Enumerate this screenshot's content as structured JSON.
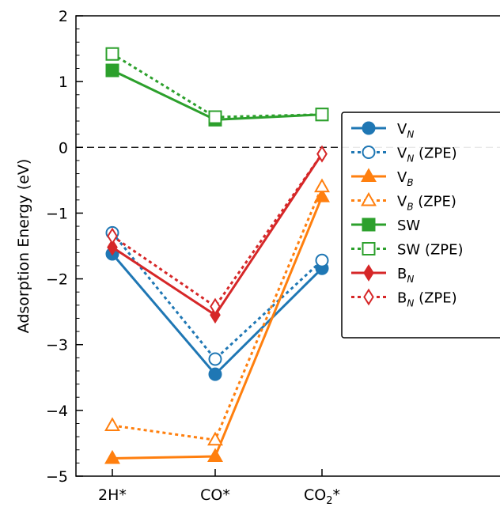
{
  "chart_data": {
    "type": "line",
    "categories": [
      "2H*",
      "CO*",
      "CO2*"
    ],
    "category_labels": [
      {
        "main": "2H*",
        "sub": ""
      },
      {
        "main": "CO*",
        "sub": ""
      },
      {
        "main": "CO",
        "sub": "2",
        "suffix": "*"
      }
    ],
    "ylabel": "Adsorption Energy (eV)",
    "xlabel": "",
    "title": "",
    "ylim": [
      -5,
      2
    ],
    "yticks": [
      2,
      1,
      0,
      -1,
      -2,
      -3,
      -4,
      -5
    ],
    "ytick_labels": [
      "2",
      "1",
      "0",
      "−1",
      "−2",
      "−3",
      "−4",
      "−5"
    ],
    "reference_line": {
      "y": 0,
      "style": "dashed",
      "color": "#000000"
    },
    "legend_position": "right",
    "series": [
      {
        "name": "V",
        "sub": "N",
        "suffix": "",
        "values": [
          -1.62,
          -3.45,
          -1.84
        ],
        "color": "#1f77b4",
        "marker": "circle",
        "filled": true,
        "dashed": false
      },
      {
        "name": "V",
        "sub": "N",
        "suffix": " (ZPE)",
        "values": [
          -1.3,
          -3.22,
          -1.72
        ],
        "color": "#1f77b4",
        "marker": "circle",
        "filled": false,
        "dashed": true
      },
      {
        "name": "V",
        "sub": "B",
        "suffix": "",
        "values": [
          -4.73,
          -4.7,
          -0.75
        ],
        "color": "#ff7f0e",
        "marker": "triangle",
        "filled": true,
        "dashed": false
      },
      {
        "name": "V",
        "sub": "B",
        "suffix": " (ZPE)",
        "values": [
          -4.23,
          -4.45,
          -0.6
        ],
        "color": "#ff7f0e",
        "marker": "triangle",
        "filled": false,
        "dashed": true
      },
      {
        "name": "SW",
        "sub": "",
        "suffix": "",
        "values": [
          1.17,
          0.42,
          0.5
        ],
        "color": "#2ca02c",
        "marker": "square",
        "filled": true,
        "dashed": false
      },
      {
        "name": "SW",
        "sub": "",
        "suffix": " (ZPE)",
        "values": [
          1.42,
          0.46,
          0.5
        ],
        "color": "#2ca02c",
        "marker": "square",
        "filled": false,
        "dashed": true
      },
      {
        "name": "B",
        "sub": "N",
        "suffix": "",
        "values": [
          -1.52,
          -2.55,
          -0.1
        ],
        "color": "#d62728",
        "marker": "diamond",
        "filled": true,
        "dashed": false
      },
      {
        "name": "B",
        "sub": "N",
        "suffix": " (ZPE)",
        "values": [
          -1.35,
          -2.42,
          -0.1
        ],
        "color": "#d62728",
        "marker": "diamond",
        "filled": false,
        "dashed": true
      }
    ]
  }
}
